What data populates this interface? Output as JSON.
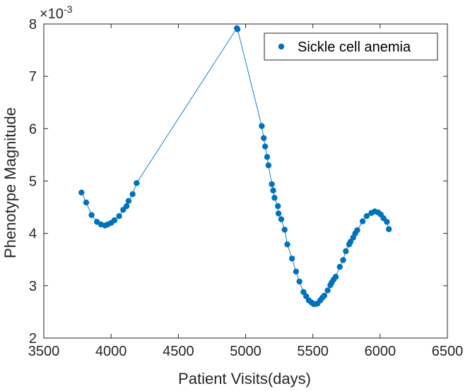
{
  "chart_data": {
    "type": "line",
    "title": "",
    "xlabel": "Patient Visits(days)",
    "ylabel": "Phenotype Magnitude",
    "xlim": [
      3500,
      6500
    ],
    "ylim": [
      2,
      8
    ],
    "xticks": [
      3500,
      4000,
      4500,
      5000,
      5500,
      6000,
      6500
    ],
    "yticks": [
      2,
      3,
      4,
      5,
      6,
      7,
      8
    ],
    "xtick_labels": [
      "3500",
      "4000",
      "4500",
      "5000",
      "5500",
      "6000",
      "6500"
    ],
    "ytick_labels": [
      "2",
      "3",
      "4",
      "5",
      "6",
      "7",
      "8"
    ],
    "y_exponent_base": "×10",
    "y_exponent_power": "-3",
    "grid": false,
    "legend_position": "top-right",
    "series": [
      {
        "name": "Sickle cell anemia",
        "color": "#0072BD",
        "marker": "circle",
        "x": [
          3780,
          3815,
          3855,
          3895,
          3925,
          3955,
          3975,
          4000,
          4025,
          4060,
          4090,
          4115,
          4130,
          4160,
          4190,
          4935,
          4940,
          5120,
          5135,
          5145,
          5160,
          5170,
          5195,
          5205,
          5215,
          5240,
          5245,
          5265,
          5290,
          5310,
          5345,
          5375,
          5400,
          5430,
          5450,
          5470,
          5490,
          5505,
          5520,
          5535,
          5555,
          5570,
          5585,
          5610,
          5630,
          5640,
          5655,
          5670,
          5700,
          5725,
          5745,
          5770,
          5780,
          5800,
          5815,
          5830,
          5870,
          5900,
          5935,
          5960,
          5985,
          6005,
          6025,
          6050,
          6065
        ],
        "y": [
          4.78,
          4.59,
          4.35,
          4.22,
          4.17,
          4.15,
          4.17,
          4.2,
          4.25,
          4.33,
          4.45,
          4.52,
          4.62,
          4.75,
          4.96,
          7.92,
          7.9,
          6.05,
          5.82,
          5.66,
          5.46,
          5.3,
          4.94,
          4.82,
          4.68,
          4.52,
          4.38,
          4.27,
          4.07,
          3.79,
          3.52,
          3.27,
          3.08,
          2.88,
          2.8,
          2.72,
          2.68,
          2.65,
          2.65,
          2.66,
          2.72,
          2.77,
          2.81,
          2.91,
          3.01,
          3.06,
          3.12,
          3.17,
          3.36,
          3.49,
          3.66,
          3.79,
          3.84,
          3.92,
          4.0,
          4.06,
          4.23,
          4.33,
          4.39,
          4.42,
          4.4,
          4.36,
          4.29,
          4.22,
          4.08
        ]
      }
    ]
  }
}
